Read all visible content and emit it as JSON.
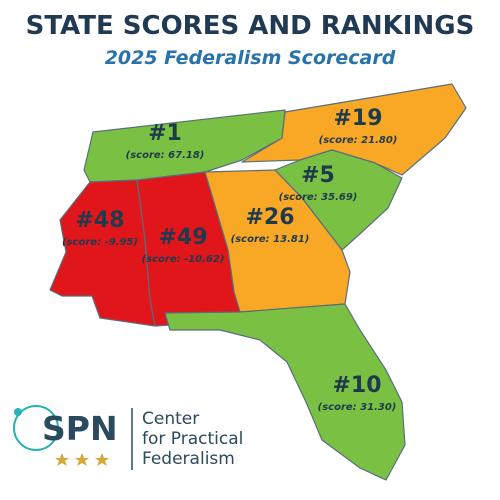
{
  "header": {
    "title": "STATE SCORES AND RANKINGS",
    "subtitle": "2025 Federalism Scorecard"
  },
  "regions": [
    {
      "rank": "#1",
      "score": "(score: 67.18)",
      "color": "#7ac143"
    },
    {
      "rank": "#19",
      "score": "(score: 21.80)",
      "color": "#f9a825"
    },
    {
      "rank": "#5",
      "score": "(score: 35.69)",
      "color": "#7ac143"
    },
    {
      "rank": "#26",
      "score": "(score: 13.81)",
      "color": "#f9a825"
    },
    {
      "rank": "#49",
      "score": "(score: -10.62)",
      "color": "#e0161b"
    },
    {
      "rank": "#48",
      "score": "(score: -9.95)",
      "color": "#e0161b"
    },
    {
      "rank": "#10",
      "score": "(score: 31.30)",
      "color": "#7ac143"
    }
  ],
  "logo": {
    "mark": "SPN",
    "lines": [
      "Center",
      "for Practical",
      "Federalism"
    ]
  }
}
